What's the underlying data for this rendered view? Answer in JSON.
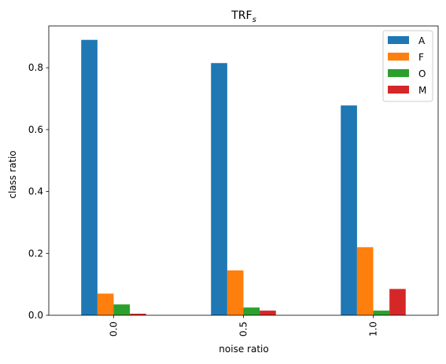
{
  "chart_data": {
    "type": "bar",
    "title": "TRF",
    "title_subscript": "s",
    "xlabel": "noise ratio",
    "ylabel": "class ratio",
    "categories": [
      "0.0",
      "0.5",
      "1.0"
    ],
    "series": [
      {
        "name": "A",
        "color": "#1f77b4",
        "values": [
          0.89,
          0.815,
          0.678
        ]
      },
      {
        "name": "F",
        "color": "#ff7f0e",
        "values": [
          0.07,
          0.145,
          0.22
        ]
      },
      {
        "name": "O",
        "color": "#2ca02c",
        "values": [
          0.035,
          0.025,
          0.015
        ]
      },
      {
        "name": "M",
        "color": "#d62728",
        "values": [
          0.005,
          0.015,
          0.085
        ]
      }
    ],
    "ylim": [
      0,
      0.935
    ],
    "yticks": [
      "0.0",
      "0.2",
      "0.4",
      "0.6",
      "0.8"
    ],
    "ytick_values": [
      0,
      0.2,
      0.4,
      0.6,
      0.8
    ],
    "grid": false,
    "legend_position": "top-right",
    "x_tick_rotation": "vertical"
  }
}
